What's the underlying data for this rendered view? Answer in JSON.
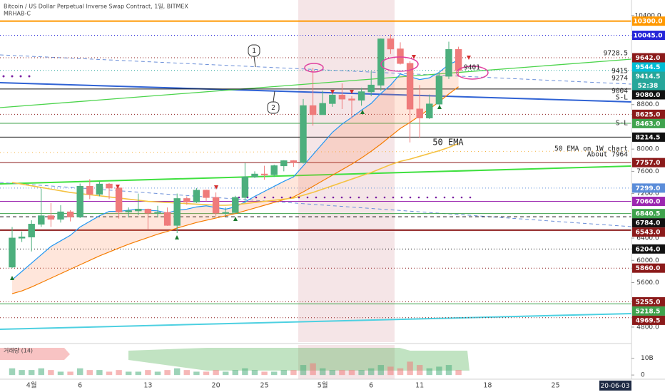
{
  "header": {
    "title": "Bitcoin / US Dollar Perpetual Inverse Swap Contract, 1일, BITMEX",
    "indicator": "MRHAB-C"
  },
  "chart_data": {
    "type": "candlestick",
    "categories": [
      null,
      null,
      "4월",
      null,
      null,
      null,
      null,
      "6",
      null,
      null,
      null,
      null,
      null,
      null,
      "13",
      null,
      null,
      null,
      null,
      null,
      null,
      "20",
      null,
      null,
      null,
      null,
      "25",
      null,
      null,
      null,
      null,
      null,
      "5월",
      null,
      null,
      null,
      null,
      "6",
      null,
      null,
      null,
      null,
      "11",
      null,
      null,
      null,
      null,
      null,
      null,
      "18",
      null,
      null,
      null,
      null,
      null,
      null,
      "25"
    ],
    "open": [
      5880,
      6400,
      6420,
      6650,
      6800,
      6740,
      6870,
      6780,
      7330,
      7190,
      7370,
      7300,
      6870,
      6890,
      6920,
      6850,
      6860,
      6630,
      7110,
      7050,
      7260,
      7130,
      6850,
      6860,
      7130,
      7500,
      7550,
      7540,
      7700,
      7790,
      7760,
      8780,
      8620,
      8820,
      8970,
      8900,
      8880,
      9030,
      9150,
      9980,
      9800,
      9540,
      8720,
      8560,
      8810,
      9310,
      9790,
      null,
      null,
      null,
      null,
      null,
      null,
      null,
      null,
      null,
      null
    ],
    "high": [
      6600,
      6520,
      6720,
      7290,
      7030,
      6990,
      6900,
      7380,
      7460,
      7420,
      7390,
      7310,
      6950,
      7200,
      6930,
      6980,
      6950,
      7200,
      7150,
      7300,
      7270,
      7220,
      6950,
      7160,
      7750,
      7600,
      7700,
      7720,
      7800,
      7800,
      8900,
      9460,
      9050,
      9000,
      9180,
      8950,
      9100,
      9400,
      9990,
      10060,
      9920,
      9580,
      9150,
      8980,
      9380,
      9930,
      9840,
      null,
      null,
      null,
      null,
      null,
      null,
      null,
      null,
      null,
      null
    ],
    "low": [
      5860,
      6330,
      6160,
      6600,
      6600,
      6680,
      6700,
      6760,
      7100,
      7150,
      7100,
      6750,
      6770,
      6810,
      6560,
      6770,
      6620,
      6490,
      7000,
      7030,
      7060,
      6800,
      6800,
      6840,
      7030,
      7480,
      7450,
      7500,
      7600,
      7680,
      7740,
      8420,
      8620,
      8760,
      8720,
      8550,
      8780,
      8950,
      9050,
      9710,
      9520,
      8120,
      8200,
      8540,
      8790,
      9260,
      9300,
      null,
      null,
      null,
      null,
      null,
      null,
      null,
      null,
      null,
      null
    ],
    "close": [
      6400,
      6420,
      6650,
      6800,
      6740,
      6870,
      6780,
      7330,
      7190,
      7370,
      7300,
      6870,
      6890,
      6920,
      6850,
      6860,
      6630,
      7110,
      7050,
      7260,
      7130,
      6850,
      6860,
      7130,
      7500,
      7550,
      7540,
      7700,
      7790,
      7760,
      8780,
      8620,
      8820,
      8970,
      8900,
      8880,
      9030,
      9150,
      9980,
      9800,
      9540,
      8720,
      8560,
      8810,
      9310,
      9790,
      9414.5,
      null,
      null,
      null,
      null,
      null,
      null,
      null,
      null,
      null,
      null
    ],
    "up_color": "#4caf7d",
    "down_color": "#ef7b7b",
    "lines": [
      {
        "color": "#2196f3",
        "values": [
          5650,
          5800,
          5950,
          6100,
          6250,
          6350,
          6450,
          6600,
          6700,
          6800,
          6880,
          6880,
          6900,
          6920,
          6900,
          6890,
          6850,
          6900,
          6920,
          6960,
          6980,
          6950,
          6920,
          6960,
          7050,
          7150,
          7240,
          7330,
          7420,
          7500,
          7700,
          7900,
          8100,
          8300,
          8450,
          8570,
          8700,
          8820,
          9000,
          9150,
          9350,
          9300,
          9250,
          9280,
          9380,
          9520,
          9600,
          null,
          null,
          null,
          null,
          null,
          null,
          null,
          null,
          null,
          null
        ]
      },
      {
        "color": "#f57c00",
        "values": [
          5400,
          5450,
          5520,
          5600,
          5680,
          5760,
          5840,
          5920,
          6000,
          6080,
          6150,
          6220,
          6290,
          6350,
          6410,
          6470,
          6520,
          6580,
          6630,
          6680,
          6720,
          6760,
          6800,
          6840,
          6890,
          6940,
          6990,
          7040,
          7090,
          7140,
          7230,
          7330,
          7430,
          7530,
          7630,
          7730,
          7840,
          7960,
          8090,
          8230,
          8370,
          8480,
          8600,
          8720,
          8850,
          8990,
          9120,
          null,
          null,
          null,
          null,
          null,
          null,
          null,
          null,
          null,
          null
        ]
      },
      {
        "color": "#f5c242",
        "values": [
          7400,
          7370,
          7340,
          7310,
          7280,
          7250,
          7220,
          7200,
          7180,
          7160,
          7140,
          7120,
          7100,
          7080,
          7060,
          7050,
          7040,
          7030,
          7020,
          7010,
          7000,
          6990,
          6990,
          7000,
          7020,
          7040,
          7060,
          7080,
          7100,
          7120,
          7170,
          7220,
          7280,
          7340,
          7400,
          7460,
          7520,
          7580,
          7650,
          7720,
          7780,
          7820,
          7870,
          7920,
          7970,
          8030,
          8100,
          null,
          null,
          null,
          null,
          null,
          null,
          null,
          null,
          null,
          null
        ]
      }
    ],
    "ylim": [
      4530,
      10680
    ],
    "yticks": [
      {
        "value": 10400,
        "label": "10400.0"
      },
      {
        "value": 8800,
        "label": "8800.0"
      },
      {
        "value": 8000,
        "label": "8000.0"
      },
      {
        "value": 7600,
        "label": "7600.0"
      },
      {
        "value": 7200,
        "label": "7200.0"
      },
      {
        "value": 6400,
        "label": "6400.0"
      },
      {
        "value": 6000,
        "label": "6000.0"
      },
      {
        "value": 5600,
        "label": "5600.0"
      },
      {
        "value": 4800,
        "label": "4800.0"
      }
    ],
    "levels": [
      {
        "value": 10300,
        "label": "10300.0",
        "color": "#ff9800",
        "style": "solid"
      },
      {
        "value": 10045,
        "label": "10045.0",
        "color": "#2424d8",
        "style": "dotted"
      },
      {
        "value": 9642,
        "label": "9642.0",
        "color": "#8b1a1a",
        "style": "dotted"
      },
      {
        "value": 9544.5,
        "label": "9544.5",
        "color": "#00bcd4",
        "style": "none"
      },
      {
        "value": 9414.5,
        "label": "9414.5",
        "color": "#26a69a",
        "style": "dotted"
      },
      {
        "value": 9080,
        "label": "9080.0",
        "color": "#111111",
        "style": "solid"
      },
      {
        "value": 8625,
        "label": "8625.0",
        "color": "#8b1a1a",
        "style": "dotted"
      },
      {
        "value": 8463,
        "label": "8463.0",
        "color": "#3fa34d",
        "style": "solid"
      },
      {
        "value": 8214.5,
        "label": "8214.5",
        "color": "#111111",
        "style": "solid"
      },
      {
        "value": 7757,
        "label": "7757.0",
        "color": "#8b1a1a",
        "style": "solid"
      },
      {
        "value": 7299,
        "label": "7299.0",
        "color": "#5b8dd9",
        "style": "dotted"
      },
      {
        "value": 7060,
        "label": "7060.0",
        "color": "#9c27b0",
        "style": "solid"
      },
      {
        "value": 6840.5,
        "label": "6840.5",
        "color": "#3fa34d",
        "style": "solid"
      },
      {
        "value": 6784,
        "label": "6784.0",
        "color": "#111111",
        "style": "dashed"
      },
      {
        "value": 6543,
        "label": "6543.0",
        "color": "#8b1a1a",
        "style": "solid"
      },
      {
        "value": 6204,
        "label": "6204.0",
        "color": "#111111",
        "style": "dotted"
      },
      {
        "value": 5860,
        "label": "5860.0",
        "color": "#8b1a1a",
        "style": "dotted"
      },
      {
        "value": 5255,
        "label": "5255.0",
        "color": "#8b1a1a",
        "style": "dotted"
      },
      {
        "value": 5218.5,
        "label": "5218.5",
        "color": "#3fa34d",
        "style": "solid"
      },
      {
        "value": 4969.5,
        "label": "4969.5",
        "color": "#8b1a1a",
        "style": "dotted"
      }
    ],
    "countdown": "52:38",
    "volume": {
      "label": "거래량 (14)",
      "values": [
        4,
        3,
        3,
        4,
        3,
        2,
        2,
        4,
        3,
        3,
        2,
        3,
        2,
        2,
        3,
        2,
        3,
        4,
        3,
        2,
        2,
        3,
        2,
        3,
        4,
        3,
        2,
        2,
        3,
        3,
        6,
        7,
        4,
        3,
        3,
        3,
        3,
        4,
        6,
        5,
        4,
        8,
        6,
        4,
        5,
        6,
        3,
        null,
        null,
        null,
        null,
        null,
        null,
        null,
        null,
        null,
        null
      ],
      "ylim": [
        -2.5,
        18
      ],
      "yticks": [
        {
          "value": 10,
          "label": "10B"
        },
        0
      ]
    },
    "annotations": [
      "9728.5",
      "9401",
      "9415",
      "9274",
      "9004",
      "S-L",
      "S-L",
      "50 EMA",
      "50 EMA on 1W chart",
      "About 7964",
      "1",
      "2"
    ],
    "cursor_date": "20-06-03"
  }
}
